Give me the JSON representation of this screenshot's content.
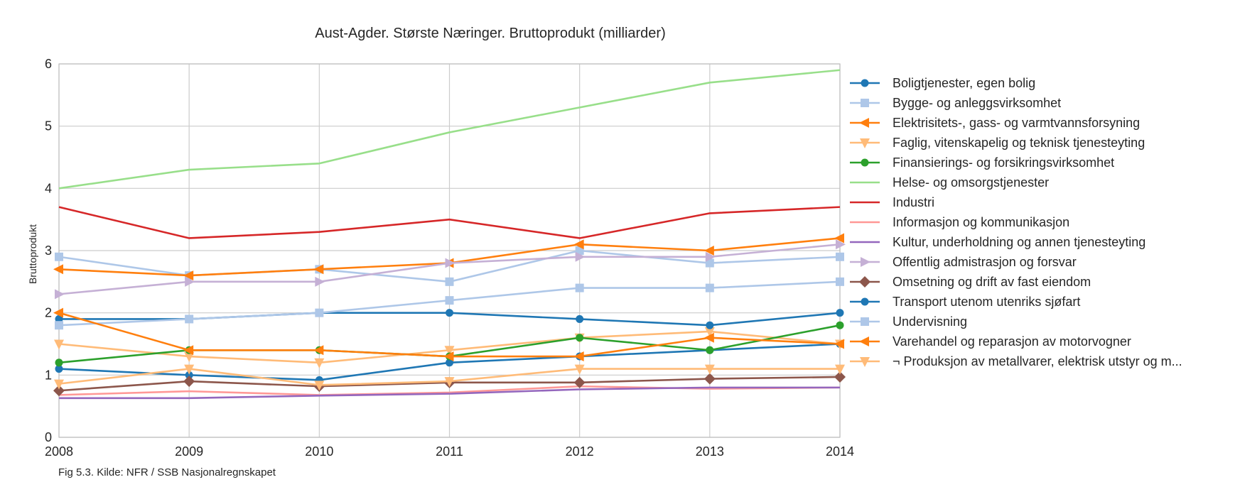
{
  "chart_data": {
    "type": "line",
    "title": "Aust-Agder. Største Næringer. Bruttoprodukt (milliarder)",
    "xlabel": "",
    "ylabel": "Bruttoprodukt",
    "x": [
      "2008",
      "2009",
      "2010",
      "2011",
      "2012",
      "2013",
      "2014"
    ],
    "xlim": [
      2008,
      2014
    ],
    "ylim": [
      0,
      6
    ],
    "yticks": [
      "0",
      "1",
      "2",
      "3",
      "4",
      "5",
      "6"
    ],
    "grid": true,
    "legend_position": "right",
    "note": "Fig 5.3. Kilde: NFR / SSB Nasjonalregnskapet",
    "series": [
      {
        "name": "Boligtjenester, egen bolig",
        "color": "#1f77b4",
        "marker": "circle",
        "values": [
          1.1,
          1.0,
          0.92,
          1.2,
          1.3,
          1.4,
          1.5
        ]
      },
      {
        "name": "Bygge- og anleggsvirksomhet",
        "color": "#aec7e8",
        "marker": "square",
        "values": [
          2.9,
          2.6,
          2.7,
          2.5,
          3.0,
          2.8,
          2.9
        ]
      },
      {
        "name": "Elektrisitets-, gass- og varmtvannsforsyning",
        "color": "#ff7f0e",
        "marker": "triangle-left",
        "values": [
          2.7,
          2.6,
          2.7,
          2.8,
          3.1,
          3.0,
          3.2
        ]
      },
      {
        "name": "Faglig, vitenskapelig og teknisk tjenesteyting",
        "color": "#ffbb78",
        "marker": "triangle-down",
        "values": [
          1.5,
          1.3,
          1.2,
          1.4,
          1.6,
          1.7,
          1.5
        ]
      },
      {
        "name": "Finansierings- og forsikringsvirksomhet",
        "color": "#2ca02c",
        "marker": "circle",
        "values": [
          1.2,
          1.4,
          1.4,
          1.3,
          1.6,
          1.4,
          1.8
        ]
      },
      {
        "name": "Helse- og omsorgstjenester",
        "color": "#98df8a",
        "marker": "none",
        "values": [
          4.0,
          4.3,
          4.4,
          4.9,
          5.3,
          5.7,
          5.9
        ]
      },
      {
        "name": "Industri",
        "color": "#d62728",
        "marker": "none",
        "values": [
          3.7,
          3.2,
          3.3,
          3.5,
          3.2,
          3.6,
          3.7
        ]
      },
      {
        "name": "Informasjon og kommunikasjon",
        "color": "#ff9896",
        "marker": "none",
        "values": [
          0.68,
          0.74,
          0.68,
          0.72,
          0.82,
          0.78,
          0.8
        ]
      },
      {
        "name": "Kultur, underholdning og annen tjenesteyting",
        "color": "#9467bd",
        "marker": "none",
        "values": [
          0.63,
          0.63,
          0.67,
          0.7,
          0.77,
          0.8,
          0.8
        ]
      },
      {
        "name": "Offentlig admistrasjon og forsvar",
        "color": "#c5b0d5",
        "marker": "triangle-right",
        "values": [
          2.3,
          2.5,
          2.5,
          2.8,
          2.9,
          2.9,
          3.1
        ]
      },
      {
        "name": "Omsetning og drift av fast eiendom",
        "color": "#8c564b",
        "marker": "diamond",
        "values": [
          0.75,
          0.9,
          0.82,
          0.88,
          0.88,
          0.94,
          0.97
        ]
      },
      {
        "name": "Transport utenom utenriks sjøfart",
        "color": "#1f77b4",
        "marker": "circle",
        "values": [
          1.9,
          1.9,
          2.0,
          2.0,
          1.9,
          1.8,
          2.0
        ]
      },
      {
        "name": "Undervisning",
        "color": "#aec7e8",
        "marker": "square",
        "values": [
          1.8,
          1.9,
          2.0,
          2.2,
          2.4,
          2.4,
          2.5
        ]
      },
      {
        "name": "Varehandel og reparasjon av motorvogner",
        "color": "#ff7f0e",
        "marker": "triangle-left",
        "values": [
          2.0,
          1.4,
          1.4,
          1.3,
          1.3,
          1.6,
          1.5
        ]
      },
      {
        "name": "¬ Produksjon av metallvarer, elektrisk utstyr og m...",
        "color": "#ffbb78",
        "marker": "triangle-down",
        "values": [
          0.86,
          1.1,
          0.84,
          0.9,
          1.1,
          1.1,
          1.1
        ]
      }
    ]
  }
}
